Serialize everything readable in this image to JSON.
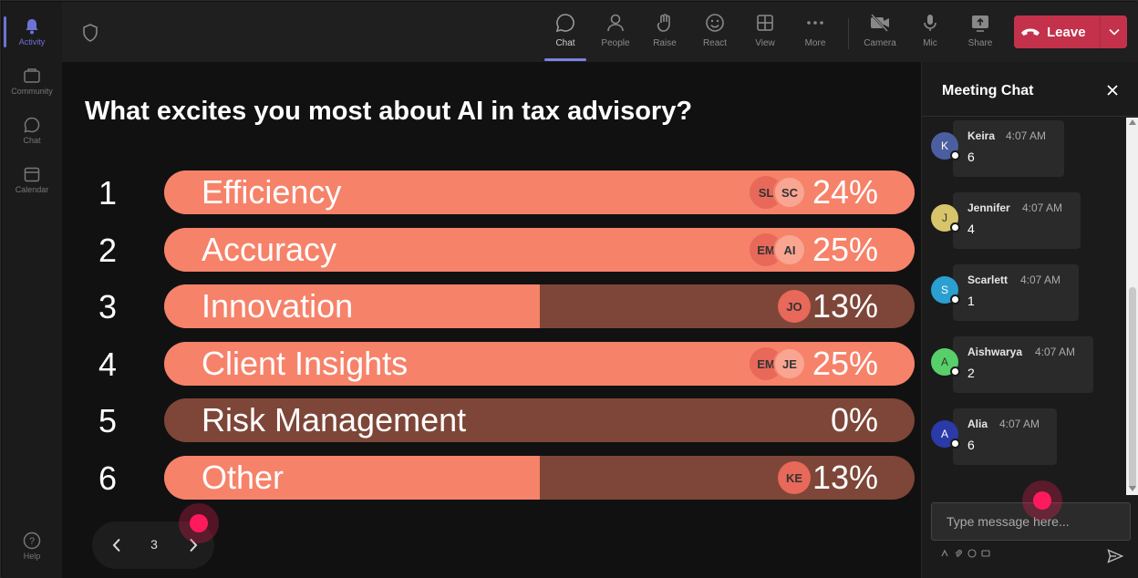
{
  "rail": {
    "items": [
      {
        "label": "Activity",
        "icon": "bell-icon"
      },
      {
        "label": "Community",
        "icon": "community-icon"
      },
      {
        "label": "Chat",
        "icon": "chat-icon"
      },
      {
        "label": "Calendar",
        "icon": "calendar-icon"
      }
    ],
    "help_label": "Help"
  },
  "toolbar": {
    "items": [
      {
        "label": "Chat",
        "icon": "chat-icon"
      },
      {
        "label": "People",
        "icon": "people-icon"
      },
      {
        "label": "Raise",
        "icon": "raise-hand-icon"
      },
      {
        "label": "React",
        "icon": "smile-icon"
      },
      {
        "label": "View",
        "icon": "grid-icon"
      },
      {
        "label": "More",
        "icon": "more-icon"
      },
      {
        "label": "Camera",
        "icon": "camera-off-icon"
      },
      {
        "label": "Mic",
        "icon": "mic-icon"
      },
      {
        "label": "Share",
        "icon": "share-icon"
      }
    ],
    "leave_label": "Leave",
    "accent": "#c4314b"
  },
  "poll": {
    "question": "What excites you most about AI in tax advisory?",
    "options": [
      {
        "num": "1",
        "label": "Efficiency",
        "pct": "24%",
        "avatars": [
          "SL",
          "SC"
        ]
      },
      {
        "num": "2",
        "label": "Accuracy",
        "pct": "25%",
        "avatars": [
          "EM",
          "AI"
        ]
      },
      {
        "num": "3",
        "label": "Innovation",
        "pct": "13%",
        "avatars": [
          "JO"
        ]
      },
      {
        "num": "4",
        "label": "Client Insights",
        "pct": "25%",
        "avatars": [
          "EM",
          "JE"
        ]
      },
      {
        "num": "5",
        "label": "Risk Management",
        "pct": "0%",
        "avatars": []
      },
      {
        "num": "6",
        "label": "Other",
        "pct": "13%",
        "avatars": [
          "KE"
        ]
      }
    ],
    "fill_color": "#f6826a",
    "track_color": "#7d4638"
  },
  "pager": {
    "page": "3"
  },
  "chat": {
    "title": "Meeting Chat",
    "messages": [
      {
        "initial": "K",
        "name": "Keira",
        "time": "4:07 AM",
        "text": "6",
        "color": "#4b5fa0"
      },
      {
        "initial": "J",
        "name": "Jennifer",
        "time": "4:07 AM",
        "text": "4",
        "color": "#d8c46a"
      },
      {
        "initial": "S",
        "name": "Scarlett",
        "time": "4:07 AM",
        "text": "1",
        "color": "#2a9fd0"
      },
      {
        "initial": "A",
        "name": "Aishwarya",
        "time": "4:07 AM",
        "text": "2",
        "color": "#57d06a"
      },
      {
        "initial": "A",
        "name": "Alia",
        "time": "4:07 AM",
        "text": "6",
        "color": "#2a3aa8"
      }
    ],
    "input_placeholder": "Type message here..."
  }
}
